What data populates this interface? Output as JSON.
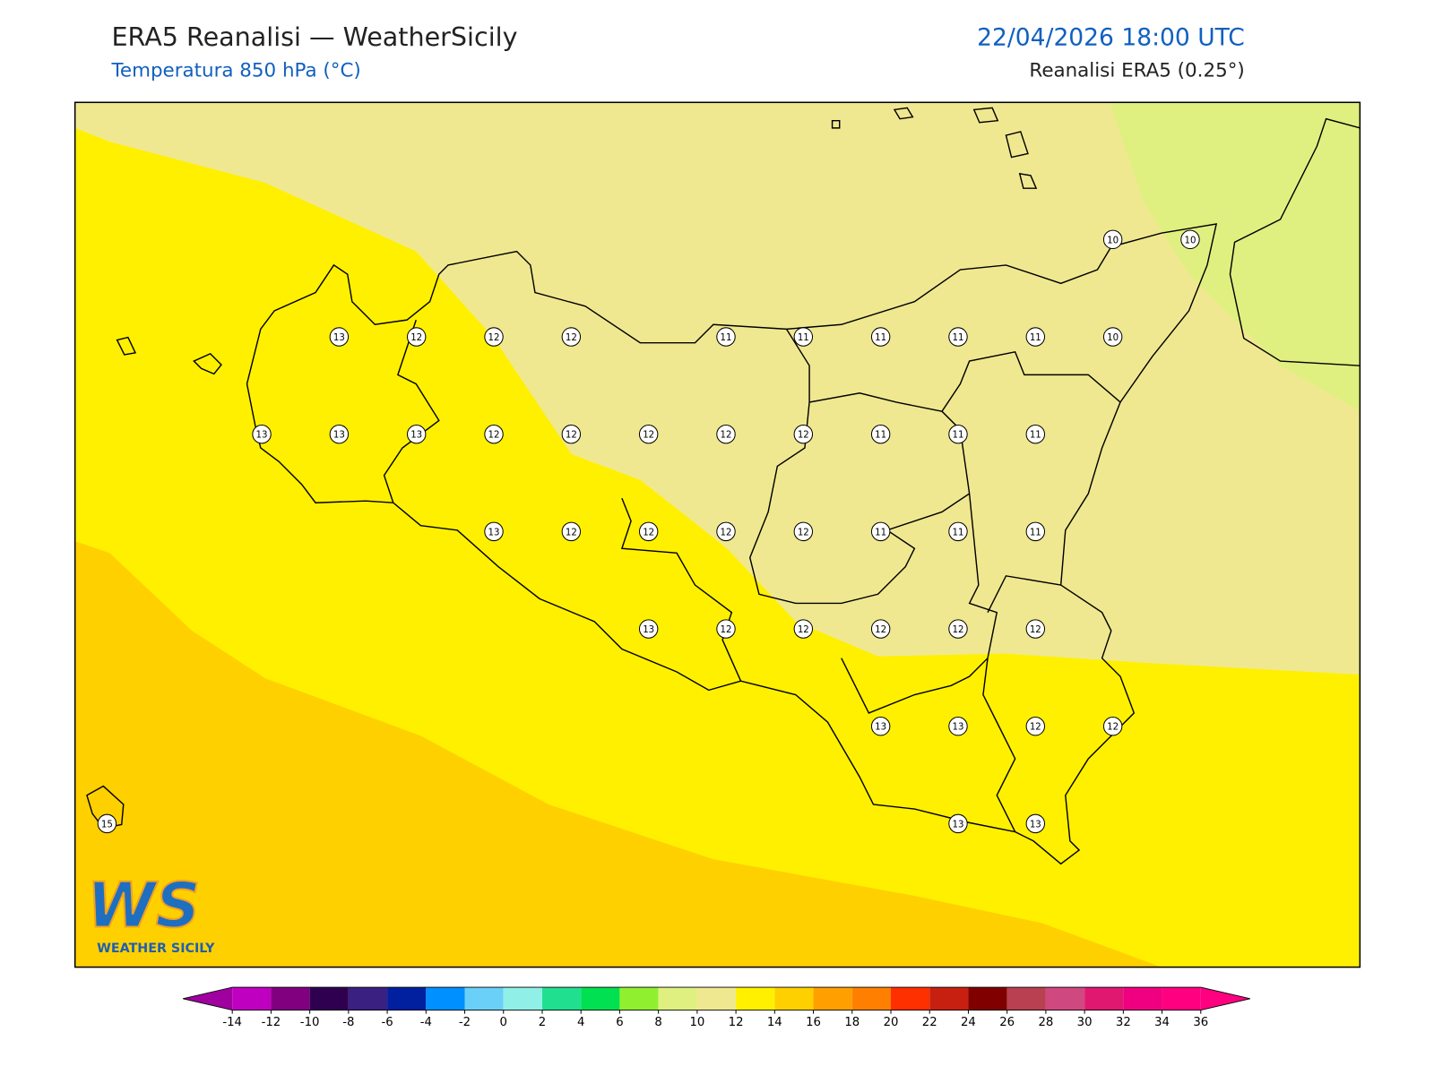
{
  "header": {
    "title": "ERA5 Reanalisi — WeatherSicily",
    "subtitle": "Temperatura 850 hPa (°C)",
    "datetime": "22/04/2026 18:00 UTC",
    "source": "Reanalisi ERA5 (0.25°)"
  },
  "stations": [
    [
      null,
      null,
      null,
      null,
      null,
      null,
      null,
      null,
      null,
      null,
      null,
      null,
      null,
      10,
      10
    ],
    [
      null,
      null,
      null,
      13,
      12,
      12,
      12,
      null,
      11,
      11,
      11,
      11,
      11,
      10,
      null
    ],
    [
      null,
      null,
      13,
      13,
      13,
      12,
      12,
      12,
      12,
      12,
      11,
      11,
      11,
      null,
      null
    ],
    [
      null,
      null,
      null,
      null,
      null,
      13,
      12,
      12,
      12,
      12,
      11,
      11,
      11,
      null,
      null
    ],
    [
      null,
      null,
      null,
      null,
      null,
      null,
      null,
      13,
      12,
      12,
      12,
      12,
      12,
      null,
      null
    ],
    [
      null,
      null,
      null,
      null,
      null,
      null,
      null,
      null,
      null,
      null,
      13,
      13,
      12,
      12,
      null
    ],
    [
      15,
      null,
      null,
      null,
      null,
      null,
      null,
      null,
      null,
      null,
      null,
      13,
      13,
      null,
      null
    ]
  ],
  "colorbar": {
    "ticks": [
      -14,
      -12,
      -10,
      -8,
      -6,
      -4,
      -2,
      0,
      2,
      4,
      6,
      8,
      10,
      12,
      14,
      16,
      18,
      20,
      22,
      24,
      26,
      28,
      30,
      32,
      34,
      36
    ],
    "colors": [
      "#c000c0",
      "#800080",
      "#300050",
      "#3a2080",
      "#0020a0",
      "#0090ff",
      "#6ad0f8",
      "#90f0e8",
      "#20e090",
      "#00e050",
      "#90f030",
      "#e0f080",
      "#f0e890",
      "#fff000",
      "#ffd000",
      "#ffa000",
      "#ff8000",
      "#ff3000",
      "#c82010",
      "#800000",
      "#b84050",
      "#d04880",
      "#e01870",
      "#f00080",
      "#ff0080"
    ],
    "under": "#a000a0",
    "over": "#ff0080"
  },
  "logo": {
    "mark": "WS",
    "text": "WEATHER SICILY"
  }
}
